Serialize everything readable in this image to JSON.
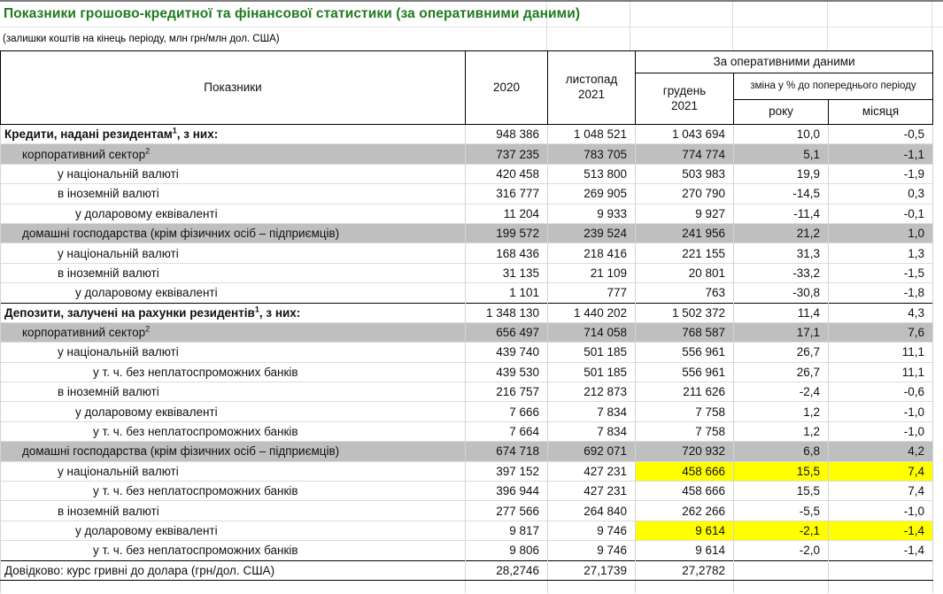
{
  "title": "Показники грошово-кредитної та фінансової статистики (за оперативними даними)",
  "subtitle": "(залишки коштів на кінець періоду, млн грн/млн дол. США)",
  "colors": {
    "title_green": "#1e7b1e",
    "band_row_gray": "#bfbfbf",
    "highlight_yellow": "#ffff00"
  },
  "header": {
    "indicators": "Показники",
    "col_2020": "2020",
    "col_nov": "листопад 2021",
    "operational_group": "За оперативними даними",
    "col_dec": "грудень 2021",
    "change_group": "зміна у % до попереднього періоду",
    "col_year": "року",
    "col_month": "місяця"
  },
  "rows": [
    {
      "label": "Кредити, надані резидентам",
      "sup": "1",
      "suffix": ", з них:",
      "style": "section",
      "indent": 0,
      "values": [
        "948 386",
        "1 048 521",
        "1 043 694",
        "10,0",
        "-0,5"
      ],
      "highlight": []
    },
    {
      "label": "корпоративний сектор",
      "sup": "2",
      "suffix": "",
      "style": "gray",
      "indent": 1,
      "values": [
        "737 235",
        "783 705",
        "774 774",
        "5,1",
        "-1,1"
      ],
      "highlight": []
    },
    {
      "label": "у національній валюті",
      "sup": null,
      "suffix": "",
      "style": "plain",
      "indent": 3,
      "values": [
        "420 458",
        "513 800",
        "503 983",
        "19,9",
        "-1,9"
      ],
      "highlight": []
    },
    {
      "label": "в іноземній валюті",
      "sup": null,
      "suffix": "",
      "style": "plain",
      "indent": 3,
      "values": [
        "316 777",
        "269 905",
        "270 790",
        "-14,5",
        "0,3"
      ],
      "highlight": []
    },
    {
      "label": "у доларовому еквіваленті",
      "sup": null,
      "suffix": "",
      "style": "plain",
      "indent": 4,
      "values": [
        "11 204",
        "9 933",
        "9 927",
        "-11,4",
        "-0,1"
      ],
      "highlight": []
    },
    {
      "label": "домашні господарства (крім фізичних осіб – підприємців)",
      "sup": null,
      "suffix": "",
      "style": "gray",
      "indent": 1,
      "values": [
        "199 572",
        "239 524",
        "241 956",
        "21,2",
        "1,0"
      ],
      "highlight": []
    },
    {
      "label": "у національній валюті",
      "sup": null,
      "suffix": "",
      "style": "plain",
      "indent": 3,
      "values": [
        "168 436",
        "218 416",
        "221 155",
        "31,3",
        "1,3"
      ],
      "highlight": []
    },
    {
      "label": "в іноземній валюті",
      "sup": null,
      "suffix": "",
      "style": "plain",
      "indent": 3,
      "values": [
        "31 135",
        "21 109",
        "20 801",
        "-33,2",
        "-1,5"
      ],
      "highlight": []
    },
    {
      "label": "у доларовому еквіваленті",
      "sup": null,
      "suffix": "",
      "style": "plain",
      "indent": 4,
      "values": [
        "1 101",
        "777",
        "763",
        "-30,8",
        "-1,8"
      ],
      "highlight": []
    },
    {
      "label": "Депозити, залучені на рахунки резидентів",
      "sup": "1",
      "suffix": ", з них:",
      "style": "section",
      "indent": 0,
      "values": [
        "1 348 130",
        "1 440 202",
        "1 502 372",
        "11,4",
        "4,3"
      ],
      "highlight": []
    },
    {
      "label": "корпоративний сектор",
      "sup": "2",
      "suffix": "",
      "style": "gray",
      "indent": 1,
      "values": [
        "656 497",
        "714 058",
        "768 587",
        "17,1",
        "7,6"
      ],
      "highlight": []
    },
    {
      "label": "у національній валюті",
      "sup": null,
      "suffix": "",
      "style": "plain",
      "indent": 3,
      "values": [
        "439 740",
        "501 185",
        "556 961",
        "26,7",
        "11,1"
      ],
      "highlight": []
    },
    {
      "label": "у т. ч. без неплатоспроможних банків",
      "sup": null,
      "suffix": "",
      "style": "plain",
      "indent": 5,
      "values": [
        "439 530",
        "501 185",
        "556 961",
        "26,7",
        "11,1"
      ],
      "highlight": []
    },
    {
      "label": "в іноземній валюті",
      "sup": null,
      "suffix": "",
      "style": "plain",
      "indent": 3,
      "values": [
        "216 757",
        "212 873",
        "211 626",
        "-2,4",
        "-0,6"
      ],
      "highlight": []
    },
    {
      "label": "у доларовому еквіваленті",
      "sup": null,
      "suffix": "",
      "style": "plain",
      "indent": 4,
      "values": [
        "7 666",
        "7 834",
        "7 758",
        "1,2",
        "-1,0"
      ],
      "highlight": []
    },
    {
      "label": "у т. ч. без неплатоспроможних банків",
      "sup": null,
      "suffix": "",
      "style": "plain",
      "indent": 5,
      "values": [
        "7 664",
        "7 834",
        "7 758",
        "1,2",
        "-1,0"
      ],
      "highlight": []
    },
    {
      "label": "домашні господарства (крім фізичних осіб – підприємців)",
      "sup": null,
      "suffix": "",
      "style": "gray",
      "indent": 1,
      "values": [
        "674 718",
        "692 071",
        "720 932",
        "6,8",
        "4,2"
      ],
      "highlight": []
    },
    {
      "label": "у національній валюті",
      "sup": null,
      "suffix": "",
      "style": "plain",
      "indent": 3,
      "values": [
        "397 152",
        "427 231",
        "458 666",
        "15,5",
        "7,4"
      ],
      "highlight": [
        2,
        3,
        4
      ]
    },
    {
      "label": "у т. ч. без неплатоспроможних банків",
      "sup": null,
      "suffix": "",
      "style": "plain",
      "indent": 5,
      "values": [
        "396 944",
        "427 231",
        "458 666",
        "15,5",
        "7,4"
      ],
      "highlight": []
    },
    {
      "label": "в іноземній валюті",
      "sup": null,
      "suffix": "",
      "style": "plain",
      "indent": 3,
      "values": [
        "277 566",
        "264 840",
        "262 266",
        "-5,5",
        "-1,0"
      ],
      "highlight": []
    },
    {
      "label": "у доларовому еквіваленті",
      "sup": null,
      "suffix": "",
      "style": "plain",
      "indent": 4,
      "values": [
        "9 817",
        "9 746",
        "9 614",
        "-2,1",
        "-1,4"
      ],
      "highlight": [
        2,
        3,
        4
      ]
    },
    {
      "label": "у т. ч. без неплатоспроможних банків",
      "sup": null,
      "suffix": "",
      "style": "plain",
      "indent": 5,
      "values": [
        "9 806",
        "9 746",
        "9 614",
        "-2,0",
        "-1,4"
      ],
      "highlight": []
    },
    {
      "label": "Довідково: курс гривні до долара (грн/дол. США)",
      "sup": null,
      "suffix": "",
      "style": "reference",
      "indent": 0,
      "values": [
        "28,2746",
        "27,1739",
        "27,2782",
        "",
        ""
      ],
      "highlight": []
    }
  ]
}
